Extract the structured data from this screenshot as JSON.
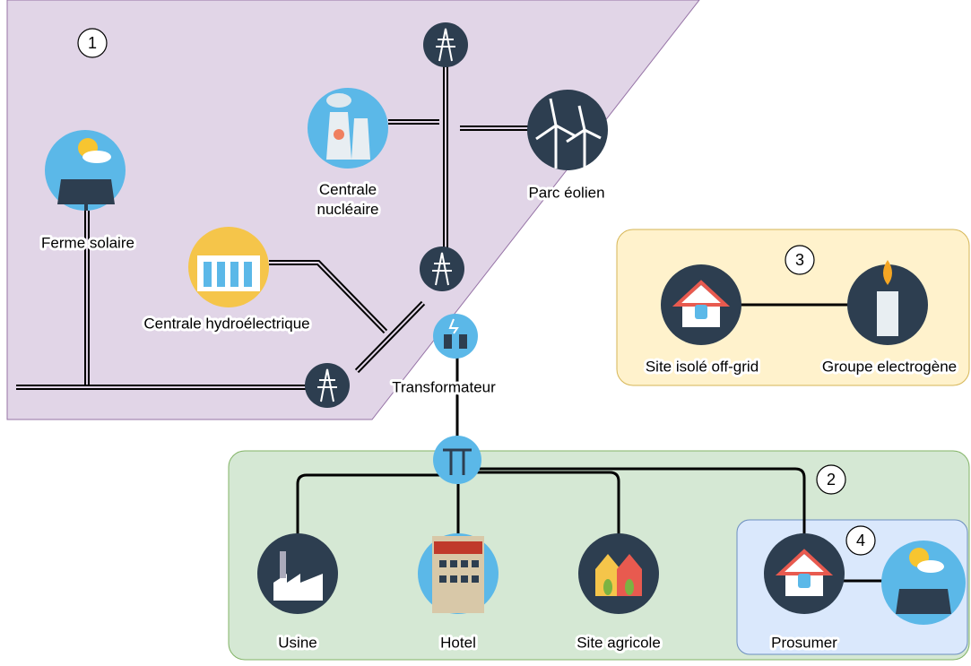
{
  "zones": [
    {
      "number": "1"
    },
    {
      "number": "2"
    },
    {
      "number": "3"
    },
    {
      "number": "4"
    }
  ],
  "nodes": [
    {
      "label": "Ferme solaire"
    },
    {
      "label": "Centrale\nnucléaire"
    },
    {
      "label": "Parc éolien"
    },
    {
      "label": "Centrale hydroélectrique"
    },
    {
      "label": "Transformateur"
    },
    {
      "label": "Site isolé off-grid"
    },
    {
      "label": "Groupe electrogène"
    },
    {
      "label": "Usine"
    },
    {
      "label": "Hotel"
    },
    {
      "label": "Site agricole"
    },
    {
      "label": "Prosumer"
    }
  ]
}
